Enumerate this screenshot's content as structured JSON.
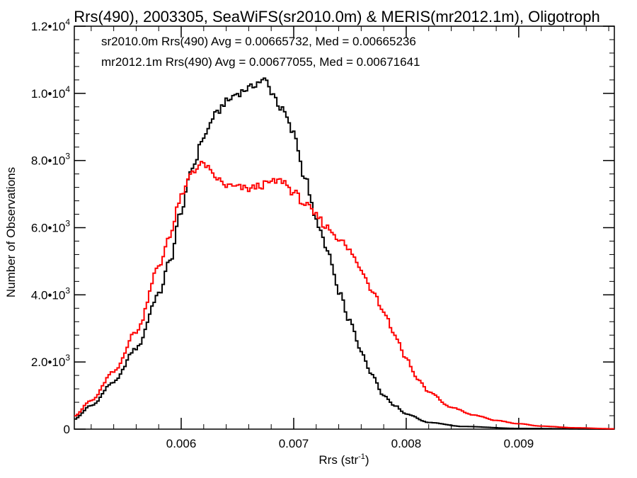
{
  "chart_data": {
    "type": "line",
    "title": "Rrs(490), 2003305, SeaWiFS(sr2010.0m) & MERIS(mr2012.1m), Oligotroph",
    "xlabel_main": "Rrs (str",
    "xlabel_sup": "-1",
    "xlabel_end": ")",
    "ylabel": "Number of Observations",
    "xlim": [
      0.00505,
      0.00985
    ],
    "ylim": [
      0,
      12000
    ],
    "x_ticks": [
      {
        "value": 0.006,
        "label": "0.006"
      },
      {
        "value": 0.007,
        "label": "0.007"
      },
      {
        "value": 0.008,
        "label": "0.008"
      },
      {
        "value": 0.009,
        "label": "0.009"
      }
    ],
    "x_minor_step": 0.0002,
    "y_ticks": [
      {
        "value": 0,
        "mant": "0",
        "exp": ""
      },
      {
        "value": 2000,
        "mant": "2.0•10",
        "exp": "3"
      },
      {
        "value": 4000,
        "mant": "4.0•10",
        "exp": "3"
      },
      {
        "value": 6000,
        "mant": "6.0•10",
        "exp": "3"
      },
      {
        "value": 8000,
        "mant": "8.0•10",
        "exp": "3"
      },
      {
        "value": 10000,
        "mant": "1.0•10",
        "exp": "4"
      },
      {
        "value": 12000,
        "mant": "1.2•10",
        "exp": "4"
      }
    ],
    "y_minor_step": 400,
    "legend": [
      {
        "text": "sr2010.0m Rrs(490) Avg = 0.00665732, Med = 0.00665236",
        "color": "#000000"
      },
      {
        "text": "mr2012.1m Rrs(490) Avg = 0.00677055, Med = 0.00671641",
        "color": "#ff0000"
      }
    ],
    "series": [
      {
        "color": "#000000",
        "points": [
          [
            0.00505,
            300
          ],
          [
            0.0052,
            700
          ],
          [
            0.0054,
            1400
          ],
          [
            0.0056,
            2400
          ],
          [
            0.0058,
            4000
          ],
          [
            0.0059,
            5000
          ],
          [
            0.006,
            6500
          ],
          [
            0.0061,
            7800
          ],
          [
            0.0062,
            8700
          ],
          [
            0.0063,
            9350
          ],
          [
            0.0064,
            9750
          ],
          [
            0.0065,
            10000
          ],
          [
            0.0066,
            10150
          ],
          [
            0.0067,
            10350
          ],
          [
            0.00675,
            10400
          ],
          [
            0.0068,
            10050
          ],
          [
            0.0069,
            9500
          ],
          [
            0.007,
            8800
          ],
          [
            0.0071,
            7500
          ],
          [
            0.0072,
            6200
          ],
          [
            0.0073,
            5300
          ],
          [
            0.0074,
            4100
          ],
          [
            0.0075,
            3200
          ],
          [
            0.0076,
            2300
          ],
          [
            0.0077,
            1600
          ],
          [
            0.0078,
            1000
          ],
          [
            0.0079,
            700
          ],
          [
            0.008,
            450
          ],
          [
            0.0082,
            200
          ],
          [
            0.0085,
            80
          ],
          [
            0.009,
            20
          ],
          [
            0.00985,
            0
          ]
        ]
      },
      {
        "color": "#ff0000",
        "points": [
          [
            0.00505,
            400
          ],
          [
            0.0052,
            850
          ],
          [
            0.0054,
            1700
          ],
          [
            0.0056,
            2900
          ],
          [
            0.0058,
            4800
          ],
          [
            0.0059,
            5800
          ],
          [
            0.006,
            6900
          ],
          [
            0.0061,
            7700
          ],
          [
            0.0062,
            7900
          ],
          [
            0.0063,
            7500
          ],
          [
            0.0064,
            7250
          ],
          [
            0.0065,
            7200
          ],
          [
            0.0066,
            7150
          ],
          [
            0.0067,
            7250
          ],
          [
            0.0068,
            7350
          ],
          [
            0.0069,
            7400
          ],
          [
            0.007,
            7050
          ],
          [
            0.0071,
            6700
          ],
          [
            0.0072,
            6350
          ],
          [
            0.0073,
            6000
          ],
          [
            0.0074,
            5700
          ],
          [
            0.0075,
            5300
          ],
          [
            0.0076,
            4750
          ],
          [
            0.0077,
            4150
          ],
          [
            0.0078,
            3500
          ],
          [
            0.0079,
            2800
          ],
          [
            0.008,
            2100
          ],
          [
            0.0081,
            1500
          ],
          [
            0.0082,
            1100
          ],
          [
            0.0084,
            650
          ],
          [
            0.0086,
            420
          ],
          [
            0.0088,
            260
          ],
          [
            0.009,
            160
          ],
          [
            0.0092,
            90
          ],
          [
            0.0095,
            40
          ],
          [
            0.00985,
            10
          ]
        ]
      }
    ]
  }
}
